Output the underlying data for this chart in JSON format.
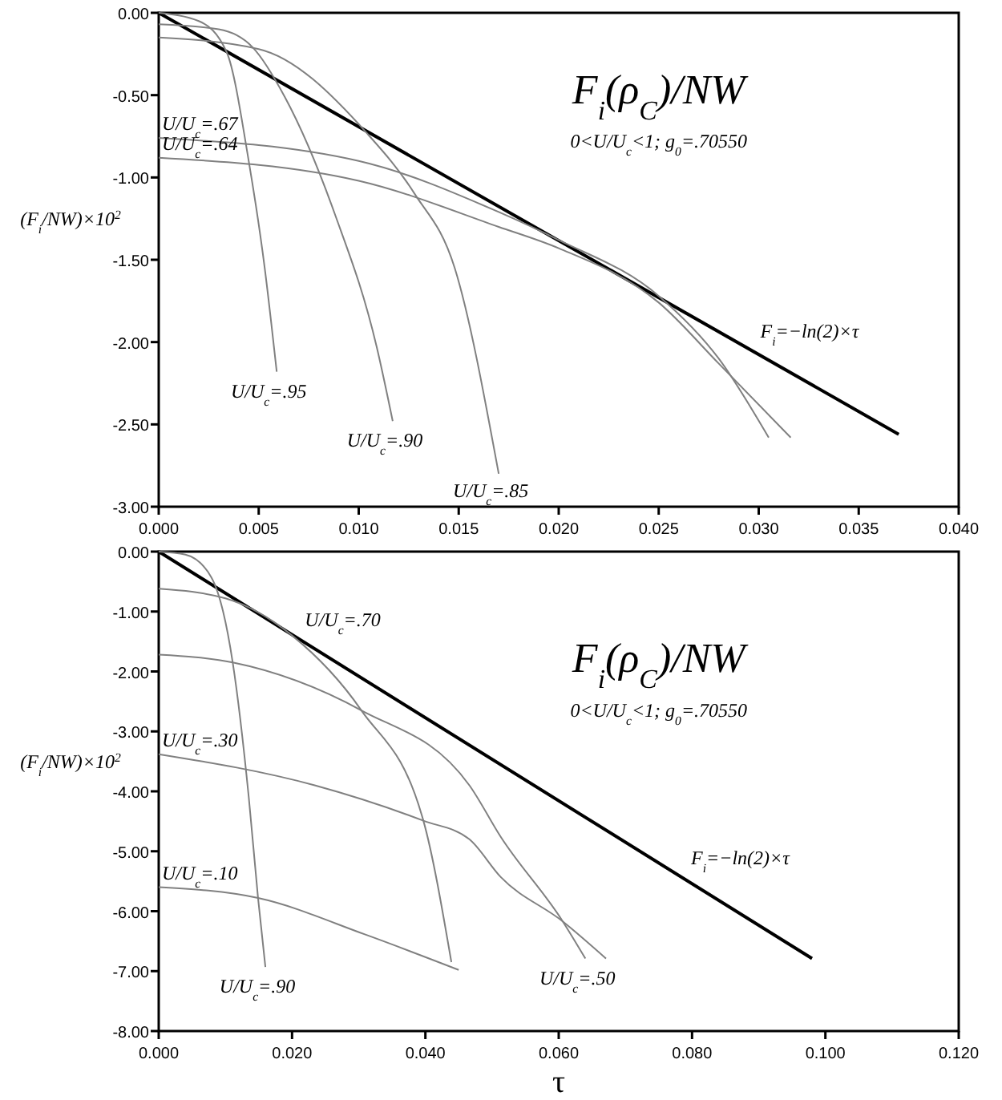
{
  "chart_data": [
    {
      "type": "line",
      "title": "F$_{i}$(ρ$_{C}$)/NW",
      "subtitle": "0<U/U$_{c}$<1; g$_{0}$=.70550",
      "ylabel": "(F$_{i}$/NW)×10$^{2}$",
      "marker": "none",
      "grid": false,
      "legend": false,
      "xlim": [
        0,
        0.04
      ],
      "ylim": [
        -3,
        0
      ],
      "xticks": [
        {
          "value": 0,
          "label": "0.000"
        },
        {
          "value": 0.005,
          "label": "0.005"
        },
        {
          "value": 0.01,
          "label": "0.010"
        },
        {
          "value": 0.015,
          "label": "0.015"
        },
        {
          "value": 0.02,
          "label": "0.020"
        },
        {
          "value": 0.025,
          "label": "0.025"
        },
        {
          "value": 0.03,
          "label": "0.030"
        },
        {
          "value": 0.035,
          "label": "0.035"
        },
        {
          "value": 0.04,
          "label": "0.040"
        }
      ],
      "yticks": [
        {
          "value": 0,
          "label": "0.00"
        },
        {
          "value": -0.5,
          "label": "-0.50"
        },
        {
          "value": -1,
          "label": "-1.00"
        },
        {
          "value": -1.5,
          "label": "-1.50"
        },
        {
          "value": -2,
          "label": "-2.00"
        },
        {
          "value": -2.5,
          "label": "-2.50"
        },
        {
          "value": -3,
          "label": "-3.00"
        }
      ],
      "series": [
        {
          "name": "F$_{i}$=−ln(2)×τ",
          "color": "#000000",
          "x": [
            0,
            0.037
          ],
          "values": [
            0,
            -2.56
          ]
        },
        {
          "name": "U/U$_{c}$=.95",
          "color": "#808080",
          "x": [
            0,
            0.002,
            0.0034,
            0.0045,
            0.0053,
            0.0059
          ],
          "values": [
            0,
            -0.05,
            -0.24,
            -0.9,
            -1.55,
            -2.18
          ]
        },
        {
          "name": "U/U$_{c}$=.90",
          "color": "#808080",
          "x": [
            0,
            0.003,
            0.0047,
            0.0063,
            0.0088,
            0.0109,
            0.0117
          ],
          "values": [
            -0.07,
            -0.1,
            -0.21,
            -0.51,
            -1.22,
            -2.03,
            -2.48
          ]
        },
        {
          "name": "U/U$_{c}$=.85",
          "color": "#808080",
          "x": [
            0,
            0.005,
            0.0104,
            0.0128,
            0.0148,
            0.017
          ],
          "values": [
            -0.15,
            -0.22,
            -0.73,
            -1.1,
            -1.55,
            -2.8
          ]
        },
        {
          "name": "U/U$_{c}$=.67",
          "color": "#808080",
          "x": [
            0,
            0.01,
            0.017,
            0.02,
            0.025,
            0.028,
            0.0305
          ],
          "values": [
            -0.76,
            -0.9,
            -1.21,
            -1.38,
            -1.72,
            -2.1,
            -2.58
          ]
        },
        {
          "name": "U/U$_{c}$=.64",
          "color": "#808080",
          "x": [
            0,
            0.01,
            0.017,
            0.02,
            0.025,
            0.028,
            0.0316
          ],
          "values": [
            -0.88,
            -1.02,
            -1.3,
            -1.43,
            -1.76,
            -2.13,
            -2.58
          ]
        }
      ]
    },
    {
      "type": "line",
      "title": "F$_{i}$(ρ$_{C}$)/NW",
      "subtitle": "0<U/U$_{c}$<1; g$_{0}$=.70550",
      "xlabel": "τ",
      "ylabel": "(F$_{i}$/NW)×10$^{2}$",
      "marker": "none",
      "grid": false,
      "legend": false,
      "xlim": [
        0,
        0.12
      ],
      "ylim": [
        -8,
        0
      ],
      "xticks": [
        {
          "value": 0,
          "label": "0.000"
        },
        {
          "value": 0.02,
          "label": "0.020"
        },
        {
          "value": 0.04,
          "label": "0.040"
        },
        {
          "value": 0.06,
          "label": "0.060"
        },
        {
          "value": 0.08,
          "label": "0.080"
        },
        {
          "value": 0.1,
          "label": "0.100"
        },
        {
          "value": 0.12,
          "label": "0.120"
        }
      ],
      "yticks": [
        {
          "value": 0,
          "label": "0.00"
        },
        {
          "value": -1,
          "label": "-1.00"
        },
        {
          "value": -2,
          "label": "-2.00"
        },
        {
          "value": -3,
          "label": "-3.00"
        },
        {
          "value": -4,
          "label": "-4.00"
        },
        {
          "value": -5,
          "label": "-5.00"
        },
        {
          "value": -6,
          "label": "-6.00"
        },
        {
          "value": -7,
          "label": "-7.00"
        },
        {
          "value": -8,
          "label": "-8.00"
        }
      ],
      "series": [
        {
          "name": "F$_{i}$=−ln(2)×τ",
          "color": "#000000",
          "x": [
            0,
            0.098
          ],
          "values": [
            0,
            -6.79
          ]
        },
        {
          "name": "U/U$_{c}$=.90",
          "color": "#808080",
          "x": [
            0,
            0.004,
            0.0079,
            0.0111,
            0.0135,
            0.0149,
            0.016
          ],
          "values": [
            0,
            -0.05,
            -0.43,
            -1.85,
            -4.09,
            -5.78,
            -6.93
          ]
        },
        {
          "name": "U/U$_{c}$=.70",
          "color": "#808080",
          "x": [
            0,
            0.01,
            0.02,
            0.0304,
            0.0397,
            0.0439
          ],
          "values": [
            -0.62,
            -0.78,
            -1.4,
            -2.65,
            -4.49,
            -6.85
          ]
        },
        {
          "name": "U/U$_{c}$=.50",
          "color": "#808080",
          "x": [
            0,
            0.0111,
            0.0304,
            0.0466,
            0.0513,
            0.0606,
            0.064
          ],
          "values": [
            -1.72,
            -1.85,
            -2.65,
            -3.9,
            -4.76,
            -6.17,
            -6.79
          ]
        },
        {
          "name": "U/U$_{c}$=.30",
          "color": "#808080",
          "x": [
            0,
            0.0234,
            0.0397,
            0.0466,
            0.0513,
            0.0606,
            0.0671
          ],
          "values": [
            -3.38,
            -3.9,
            -4.49,
            -4.8,
            -5.43,
            -6.17,
            -6.79
          ]
        },
        {
          "name": "U/U$_{c}$=.10",
          "color": "#808080",
          "x": [
            0,
            0.0149,
            0.031,
            0.045
          ],
          "values": [
            -5.6,
            -5.78,
            -6.39,
            -6.98
          ]
        }
      ]
    }
  ]
}
